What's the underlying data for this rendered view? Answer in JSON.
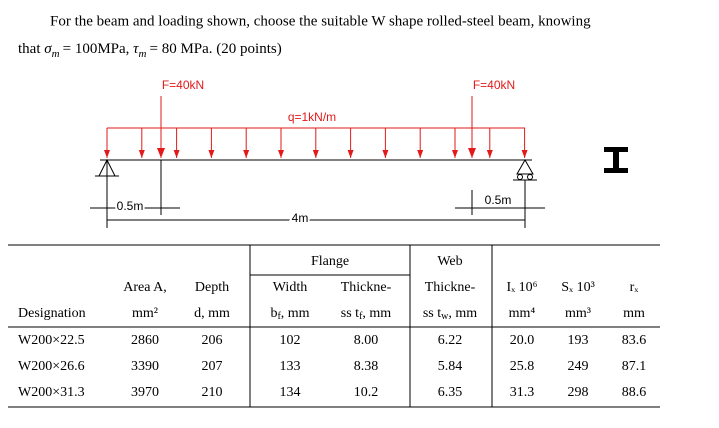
{
  "problem": {
    "line1": "For the beam and loading shown, choose the suitable W shape rolled-steel beam, knowing",
    "line2_start": "that",
    "sigma_symbol": "σ",
    "sigma_subscript": "m",
    "sigma_value": "= 100MPa,",
    "tau_symbol": "τ",
    "tau_subscript": "m",
    "tau_value": "= 80 MPa.",
    "points": "(20 points)"
  },
  "diagram": {
    "force_left": "F=40kN",
    "force_right": "F=40kN",
    "distributed_load": "q=1kN/m",
    "dim_left": "0.5m",
    "dim_span": "4m",
    "dim_right": "0.5m"
  },
  "table": {
    "group_headers": [
      "Flange",
      "Web"
    ],
    "header_row1": [
      "Area A,",
      "Depth",
      "Width",
      "Thickne-",
      "Thickne-",
      "Iₓ 10⁶",
      "Sₓ 10³",
      "rₓ"
    ],
    "header_row2": [
      "Designation",
      "mm²",
      "d, mm",
      {
        "main": "b",
        "sub": "f",
        "rest": ", mm"
      },
      {
        "main": "ss t",
        "sub": "f",
        "rest": ", mm"
      },
      {
        "main": "ss t",
        "sub": "w",
        "rest": ", mm"
      },
      "mm⁴",
      "mm³",
      "mm"
    ],
    "rows": [
      [
        "W200×22.5",
        "2860",
        "206",
        "102",
        "8.00",
        "6.22",
        "20.0",
        "193",
        "83.6"
      ],
      [
        "W200×26.6",
        "3390",
        "207",
        "133",
        "8.38",
        "5.84",
        "25.8",
        "249",
        "87.1"
      ],
      [
        "W200×31.3",
        "3970",
        "210",
        "134",
        "10.2",
        "6.35",
        "31.3",
        "298",
        "88.6"
      ]
    ]
  }
}
